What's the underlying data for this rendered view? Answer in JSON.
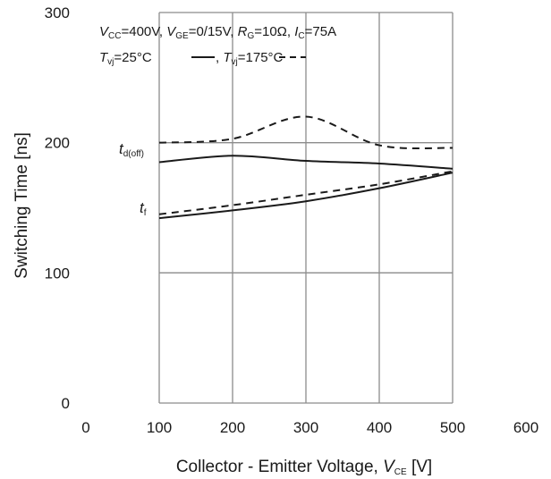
{
  "chart_data": {
    "type": "line",
    "xlabel": {
      "main": "Collector - Emitter Voltage, ",
      "var": "V",
      "sub": "CE",
      "unit": " [V]"
    },
    "ylabel": "Switching Time [ns]",
    "xlim": [
      0,
      600
    ],
    "ylim": [
      0,
      300
    ],
    "x_ticks": [
      "0",
      "100",
      "200",
      "300",
      "400",
      "500",
      "600"
    ],
    "y_ticks": [
      "0",
      "100",
      "200",
      "300"
    ],
    "grid": true,
    "conditions": {
      "line1": [
        {
          "t": "V",
          "i": true
        },
        {
          "t": "CC",
          "s": true
        },
        {
          "t": "=400V, "
        },
        {
          "t": "V",
          "i": true
        },
        {
          "t": "GE",
          "s": true
        },
        {
          "t": "=0/15V, "
        },
        {
          "t": "R",
          "i": true
        },
        {
          "t": "G",
          "s": true
        },
        {
          "t": "=10Ω, "
        },
        {
          "t": "I",
          "i": true
        },
        {
          "t": "C",
          "s": true
        },
        {
          "t": "=75A"
        }
      ],
      "line2a": [
        {
          "t": "T",
          "i": true
        },
        {
          "t": "vj",
          "s": true
        },
        {
          "t": "=25°C "
        }
      ],
      "line2b": [
        {
          "t": ", "
        },
        {
          "t": "T",
          "i": true
        },
        {
          "t": "vj",
          "s": true
        },
        {
          "t": "=175°C "
        }
      ]
    },
    "labels": {
      "td": {
        "main": "t",
        "sub": "d(off)"
      },
      "tf": {
        "main": "t",
        "sub": "f"
      }
    },
    "series": [
      {
        "quantity": "td(off)",
        "temperature": "25°C",
        "style": "solid",
        "x": [
          100,
          200,
          300,
          400,
          500
        ],
        "y": [
          185,
          190,
          186,
          184,
          180
        ]
      },
      {
        "quantity": "td(off)",
        "temperature": "175°C",
        "style": "dashed",
        "x": [
          100,
          200,
          300,
          400,
          500
        ],
        "y": [
          200,
          203,
          220,
          198,
          196
        ]
      },
      {
        "quantity": "tf",
        "temperature": "25°C",
        "style": "solid",
        "x": [
          100,
          200,
          300,
          400,
          500
        ],
        "y": [
          142,
          148,
          155,
          165,
          177
        ]
      },
      {
        "quantity": "tf",
        "temperature": "175°C",
        "style": "dashed",
        "x": [
          100,
          200,
          300,
          400,
          500
        ],
        "y": [
          145,
          152,
          160,
          168,
          178
        ]
      }
    ]
  }
}
